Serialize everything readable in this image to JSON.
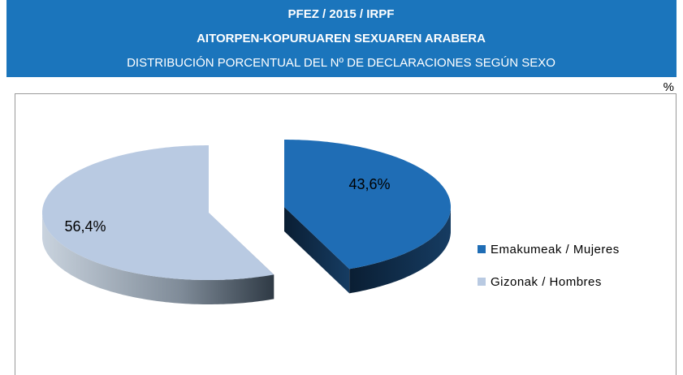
{
  "chart_data": {
    "type": "pie",
    "title": [
      "PFEZ / 2015 / IRPF",
      "AITORPEN-KOPURUAREN SEXUAREN ARABERA",
      "DISTRIBUCIÓN PORCENTUAL DEL Nº DE DECLARACIONES SEGÚN SEXO"
    ],
    "unit_label": "%",
    "categories": [
      "Emakumeak / Mujeres",
      "Gizonak / Hombres"
    ],
    "values": [
      43.6,
      56.4
    ],
    "value_labels": [
      "43,6%",
      "56,4%"
    ],
    "colors": [
      "#1f6db5",
      "#b9cae2"
    ],
    "legend": "right"
  }
}
